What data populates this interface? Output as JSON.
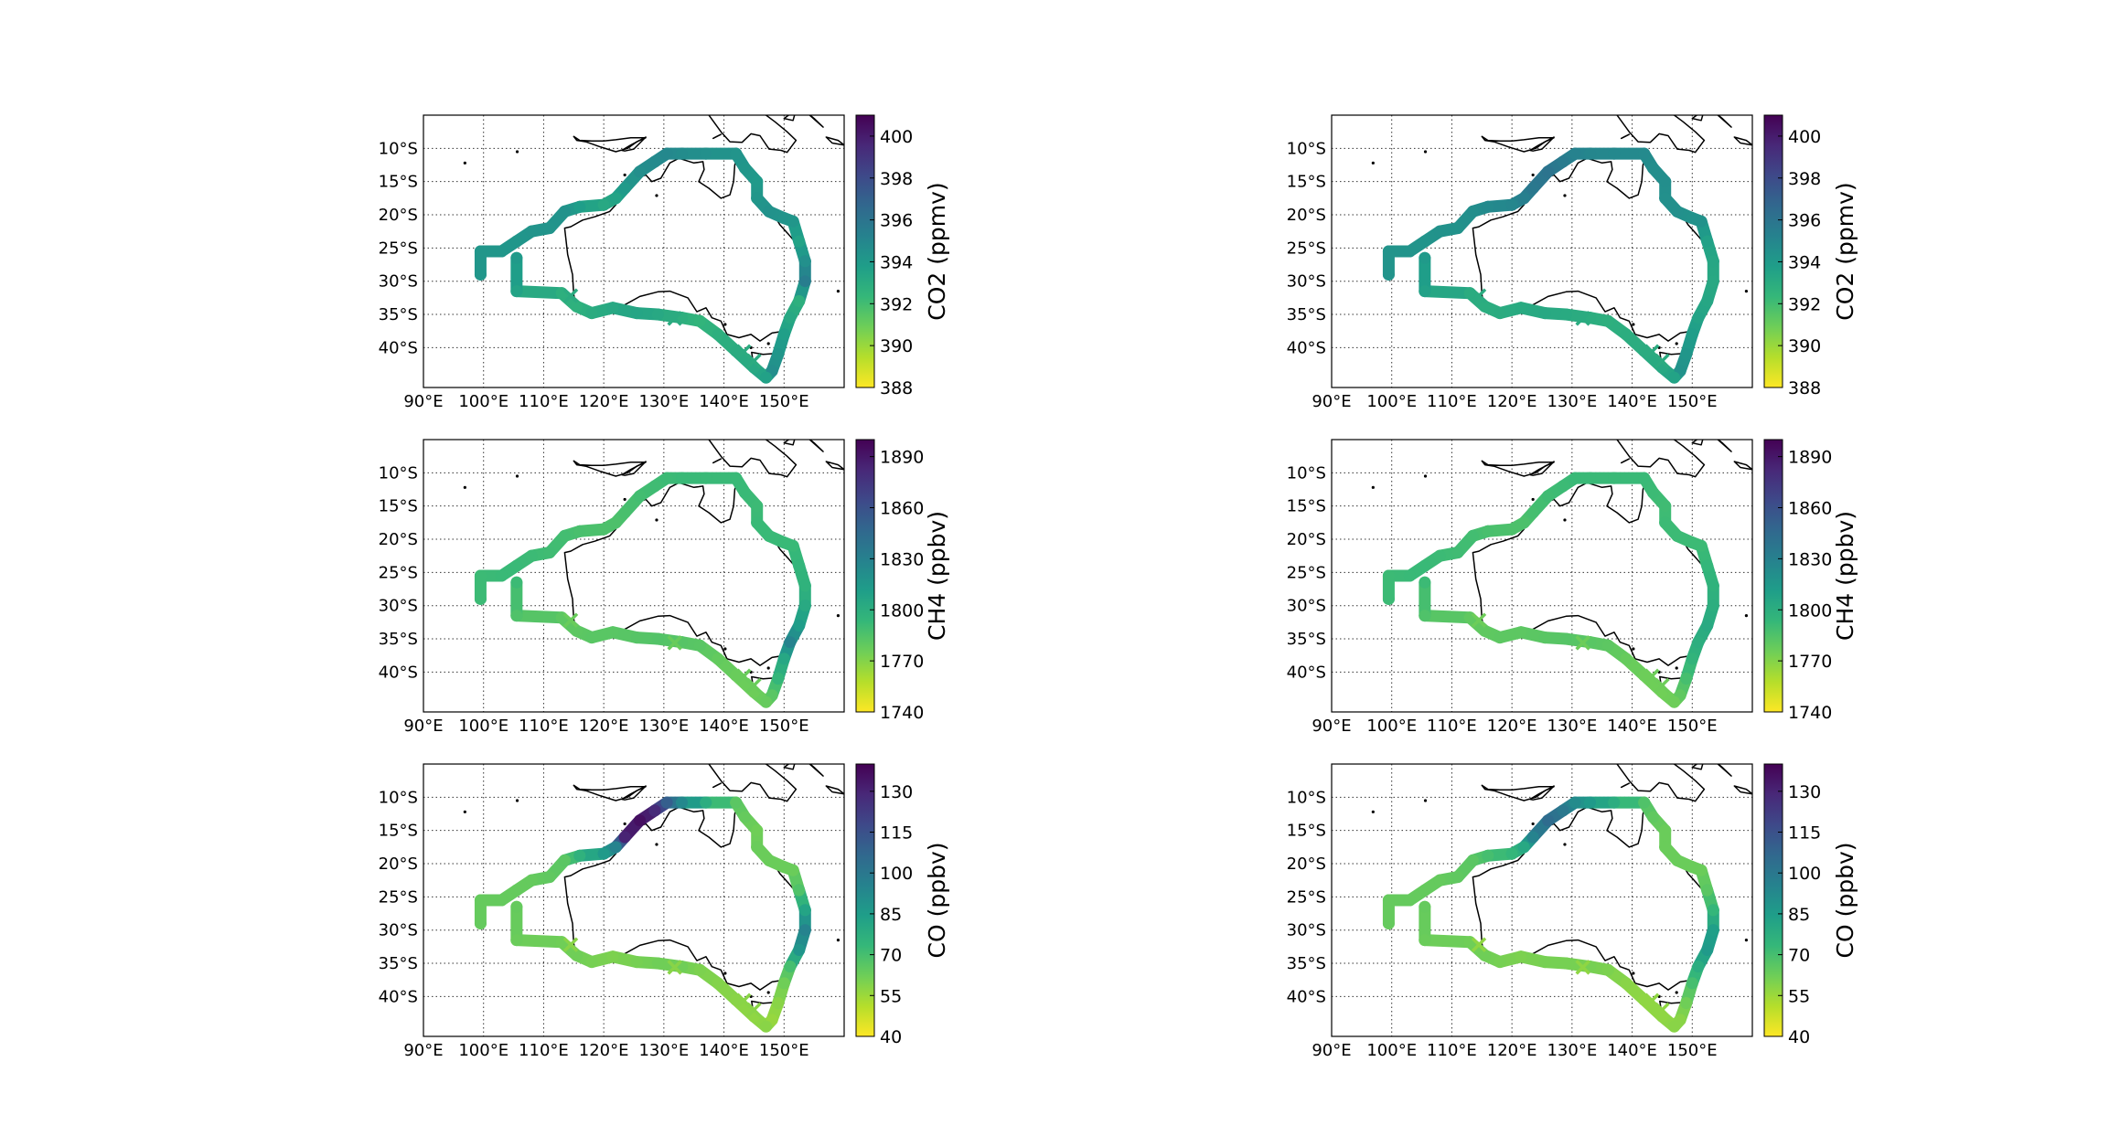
{
  "figure": {
    "description_free": true
  },
  "colormap": {
    "name": "viridis_r",
    "stops": [
      "#fde725",
      "#b5de2b",
      "#6ece58",
      "#35b779",
      "#1f9e89",
      "#26828e",
      "#31688e",
      "#3e4989",
      "#482878",
      "#440154"
    ]
  },
  "map": {
    "xticks": [
      "90°E",
      "100°E",
      "110°E",
      "120°E",
      "130°E",
      "140°E",
      "150°E"
    ],
    "xtick_values": [
      90,
      100,
      110,
      120,
      130,
      140,
      150
    ],
    "yticks": [
      "10°S",
      "15°S",
      "20°S",
      "25°S",
      "30°S",
      "35°S",
      "40°S"
    ],
    "ytick_values": [
      -10,
      -15,
      -20,
      -25,
      -30,
      -35,
      -40
    ],
    "lon_range": [
      90,
      160
    ],
    "lat_range": [
      -46,
      -5
    ],
    "grid": "dotted",
    "track_lonlat": [
      [
        99.5,
        -29
      ],
      [
        99.5,
        -25.5
      ],
      [
        103,
        -25.5
      ],
      [
        105.5,
        -24
      ],
      [
        108,
        -22.5
      ],
      [
        111,
        -22
      ],
      [
        113.5,
        -19.5
      ],
      [
        116,
        -18.8
      ],
      [
        120,
        -18.5
      ],
      [
        122,
        -17.5
      ],
      [
        123.5,
        -16
      ],
      [
        126,
        -13.5
      ],
      [
        128.5,
        -12
      ],
      [
        130.5,
        -10.8
      ],
      [
        133,
        -10.8
      ],
      [
        137,
        -10.8
      ],
      [
        142,
        -10.8
      ],
      [
        143.5,
        -13
      ],
      [
        145.5,
        -15
      ],
      [
        145.5,
        -17.5
      ],
      [
        147.5,
        -19.5
      ],
      [
        150,
        -20.5
      ],
      [
        151.5,
        -21
      ],
      [
        152.5,
        -24
      ],
      [
        153.5,
        -27
      ],
      [
        153.5,
        -30
      ],
      [
        152.5,
        -33
      ],
      [
        151,
        -35.5
      ],
      [
        150,
        -38
      ],
      [
        149,
        -41
      ],
      [
        148,
        -43.5
      ],
      [
        147,
        -44.5
      ],
      [
        145,
        -43
      ],
      [
        142,
        -40.5
      ],
      [
        139,
        -38
      ],
      [
        136,
        -36
      ],
      [
        133,
        -35.5
      ],
      [
        129,
        -35
      ],
      [
        125.5,
        -34.8
      ],
      [
        121.5,
        -34
      ],
      [
        118,
        -34.8
      ],
      [
        115.5,
        -33.8
      ],
      [
        113,
        -31.8
      ],
      [
        105.5,
        -31.5
      ],
      [
        105.5,
        -26.5
      ]
    ],
    "cross_markers_lonlat": [
      [
        145,
        -42
      ],
      [
        143.3,
        -40.6
      ],
      [
        114.5,
        -32.2
      ],
      [
        131.8,
        -35.6
      ]
    ]
  },
  "colorbars": [
    {
      "label": "CO2 (ppmv)",
      "ticks": [
        "388",
        "390",
        "392",
        "394",
        "396",
        "398",
        "400"
      ],
      "tick_values": [
        388,
        390,
        392,
        394,
        396,
        398,
        400
      ],
      "range": [
        388,
        401
      ]
    },
    {
      "label": "CH4 (ppbv)",
      "ticks": [
        "1740",
        "1770",
        "1800",
        "1830",
        "1860",
        "1890"
      ],
      "tick_values": [
        1740,
        1770,
        1800,
        1830,
        1860,
        1890
      ],
      "range": [
        1740,
        1900
      ]
    },
    {
      "label": "CO (ppbv)",
      "ticks": [
        "40",
        "55",
        "70",
        "85",
        "100",
        "115",
        "130"
      ],
      "tick_values": [
        40,
        55,
        70,
        85,
        100,
        115,
        130
      ],
      "range": [
        40,
        140
      ]
    }
  ],
  "chart_data": [
    {
      "type": "scatter",
      "variable": "CO2",
      "panel": "left",
      "unit": "ppmv",
      "track_values": [
        394.2,
        394.2,
        394.2,
        394.2,
        394.3,
        394.3,
        394.4,
        393.8,
        393.2,
        393.5,
        394,
        394.6,
        394.8,
        394.9,
        394.7,
        394.5,
        394.3,
        394.2,
        394,
        394.2,
        394.4,
        394.3,
        394.2,
        393.5,
        394.5,
        395.5,
        392.8,
        393.2,
        393.7,
        394.2,
        394.6,
        393.6,
        393.2,
        393,
        392.8,
        392.5,
        392.8,
        393.2,
        393.4,
        393.2,
        393,
        392.7,
        392.8,
        393.5,
        394
      ]
    },
    {
      "type": "scatter",
      "variable": "CO2",
      "panel": "right",
      "unit": "ppmv",
      "track_values": [
        394.3,
        394.3,
        394.3,
        394.3,
        394.4,
        394.4,
        394.6,
        394.8,
        395,
        395.4,
        395.8,
        396,
        395.6,
        395.2,
        395,
        394.9,
        394.8,
        394.6,
        394.6,
        394.5,
        394.5,
        394.4,
        394.4,
        393.6,
        393.3,
        393.2,
        393.3,
        393.5,
        393.8,
        394.2,
        394.4,
        393.5,
        393.2,
        393,
        392.9,
        392.8,
        392.9,
        393.1,
        393.2,
        393.1,
        393,
        392.9,
        393,
        393.6,
        394
      ]
    },
    {
      "type": "scatter",
      "variable": "CH4",
      "panel": "left",
      "unit": "ppbv",
      "track_values": [
        1791,
        1791,
        1792,
        1792,
        1791,
        1790,
        1789,
        1787,
        1786,
        1786,
        1787,
        1789,
        1790,
        1791,
        1792,
        1792,
        1792,
        1792,
        1791,
        1792,
        1792,
        1792,
        1792,
        1795,
        1797,
        1803,
        1812,
        1828,
        1805,
        1794,
        1782,
        1778,
        1776,
        1777,
        1779,
        1782,
        1783,
        1784,
        1783,
        1782,
        1782,
        1781,
        1781,
        1785,
        1791
      ]
    },
    {
      "type": "scatter",
      "variable": "CH4",
      "panel": "right",
      "unit": "ppbv",
      "track_values": [
        1791,
        1791,
        1792,
        1792,
        1791,
        1790,
        1789,
        1787,
        1786,
        1786,
        1788,
        1790,
        1791,
        1792,
        1792,
        1792,
        1792,
        1791,
        1790,
        1791,
        1791,
        1791,
        1791,
        1794,
        1797,
        1800,
        1803,
        1800,
        1796,
        1788,
        1780,
        1776,
        1775,
        1776,
        1778,
        1781,
        1782,
        1783,
        1782,
        1781,
        1781,
        1780,
        1780,
        1785,
        1791
      ]
    },
    {
      "type": "scatter",
      "variable": "CO",
      "panel": "left",
      "unit": "ppbv",
      "track_values": [
        64,
        64,
        64,
        64,
        64,
        65,
        66,
        76,
        86,
        95,
        130,
        136,
        128,
        110,
        93,
        78,
        66,
        64,
        62,
        63,
        63,
        63,
        63,
        68,
        82,
        95,
        88,
        70,
        62,
        58,
        56,
        58,
        57,
        58,
        59,
        60,
        62,
        62,
        61,
        60,
        61,
        62,
        62,
        63,
        64
      ]
    },
    {
      "type": "scatter",
      "variable": "CO",
      "panel": "right",
      "unit": "ppbv",
      "track_values": [
        64,
        64,
        64,
        64,
        64,
        65,
        66,
        70,
        74,
        80,
        95,
        105,
        100,
        92,
        86,
        78,
        68,
        65,
        63,
        63,
        63,
        63,
        63,
        66,
        74,
        84,
        86,
        78,
        70,
        62,
        58,
        58,
        57,
        57,
        58,
        60,
        61,
        61,
        61,
        60,
        61,
        62,
        62,
        63,
        64
      ]
    }
  ]
}
